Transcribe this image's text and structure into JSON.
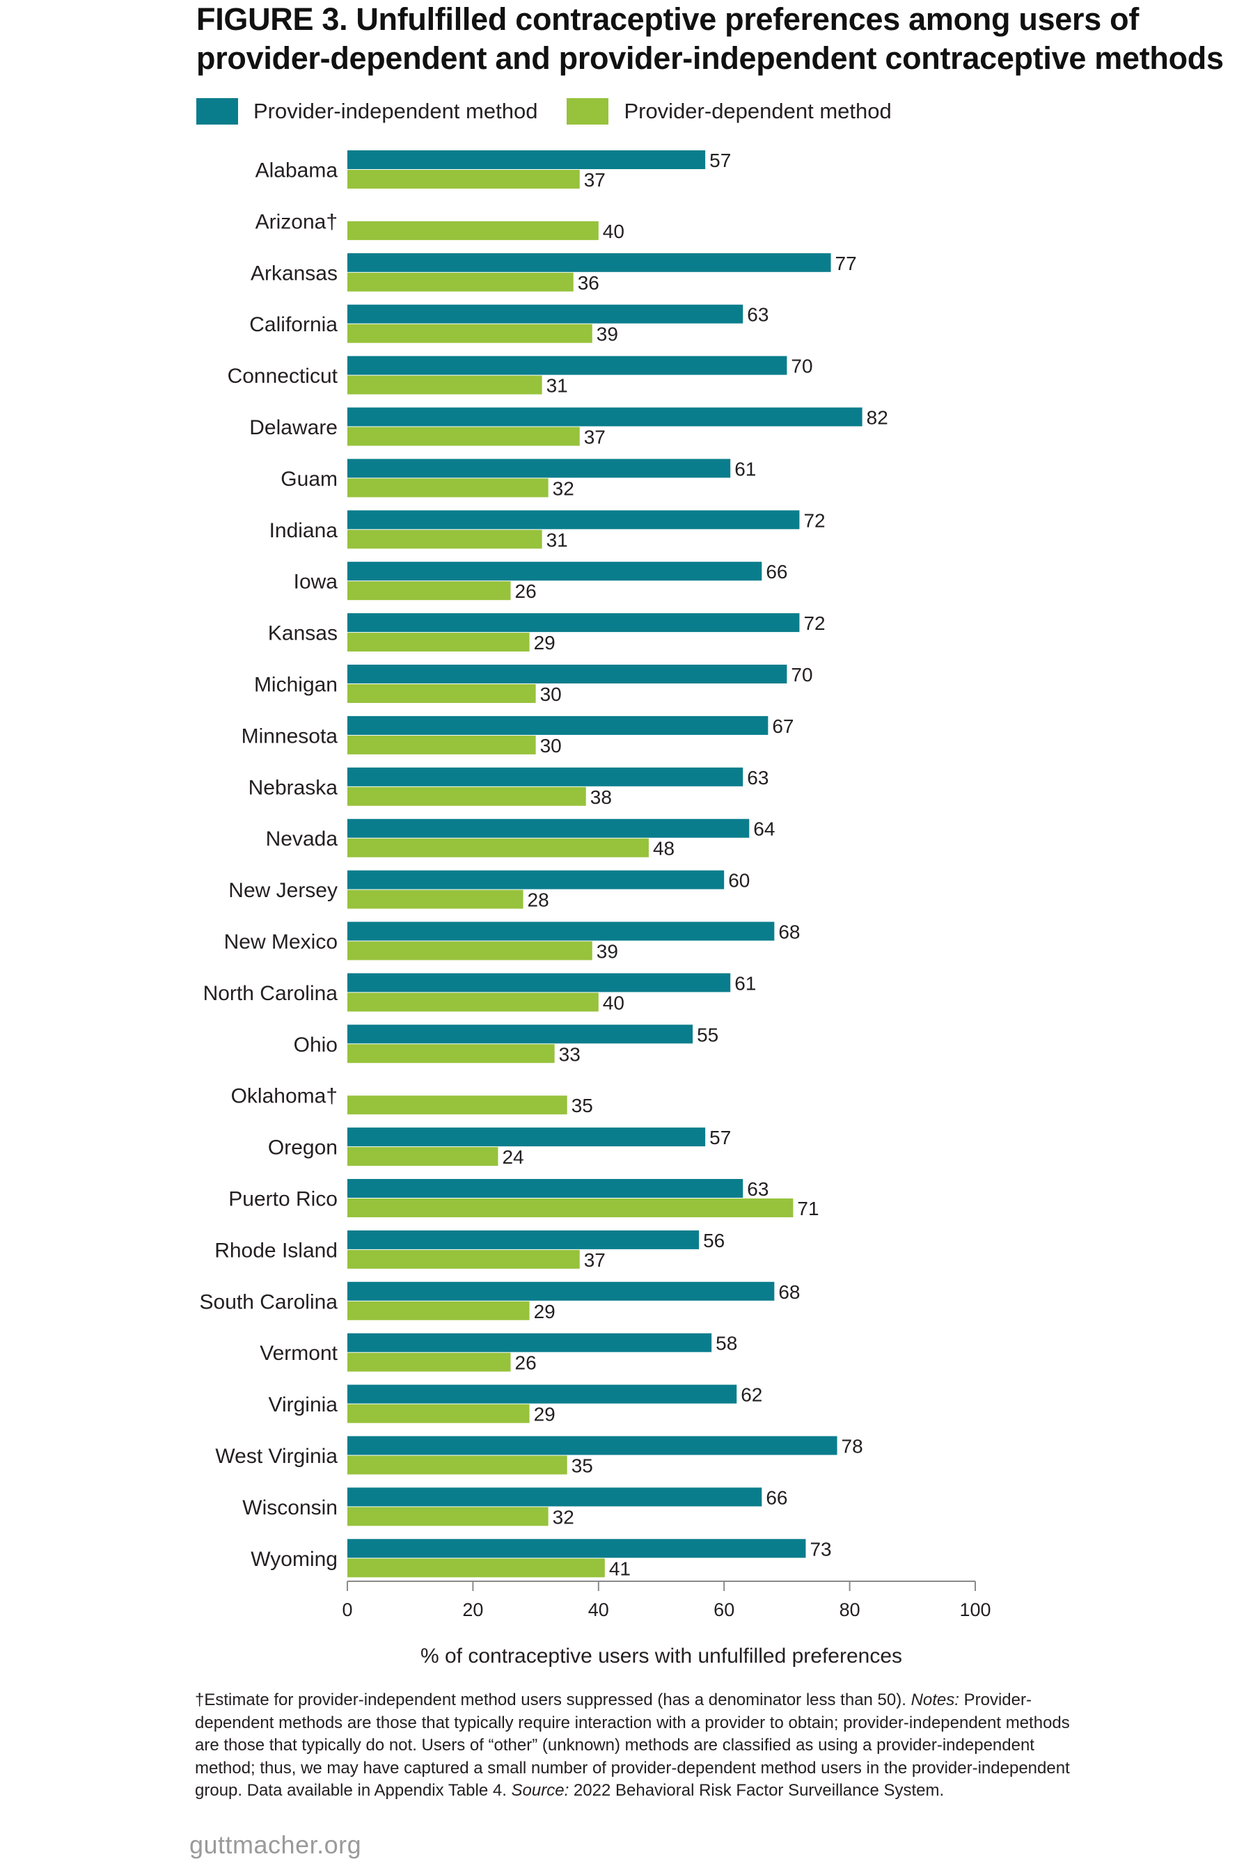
{
  "title": {
    "figure_label": "FIGURE 3.",
    "text": "Unfulfilled contraceptive preferences among users of provider-dependent and provider-independent contraceptive methods"
  },
  "legend": {
    "independent_label": "Provider-independent method",
    "dependent_label": "Provider-dependent method"
  },
  "colors": {
    "independent": "#0a7d8c",
    "dependent": "#97c23c",
    "axis": "#8a8a8a",
    "text": "#231f20"
  },
  "chart_data": {
    "type": "bar",
    "orientation": "horizontal",
    "categories": [
      "Alabama",
      "Arizona†",
      "Arkansas",
      "California",
      "Connecticut",
      "Delaware",
      "Guam",
      "Indiana",
      "Iowa",
      "Kansas",
      "Michigan",
      "Minnesota",
      "Nebraska",
      "Nevada",
      "New Jersey",
      "New Mexico",
      "North Carolina",
      "Ohio",
      "Oklahoma†",
      "Oregon",
      "Puerto Rico",
      "Rhode Island",
      "South Carolina",
      "Vermont",
      "Virginia",
      "West Virginia",
      "Wisconsin",
      "Wyoming"
    ],
    "series": [
      {
        "name": "Provider-independent method",
        "values": [
          57,
          null,
          77,
          63,
          70,
          82,
          61,
          72,
          66,
          72,
          70,
          67,
          63,
          64,
          60,
          68,
          61,
          55,
          null,
          57,
          63,
          56,
          68,
          58,
          62,
          78,
          66,
          73
        ]
      },
      {
        "name": "Provider-dependent method",
        "values": [
          37,
          40,
          36,
          39,
          31,
          37,
          32,
          31,
          26,
          29,
          30,
          30,
          38,
          48,
          28,
          39,
          40,
          33,
          35,
          24,
          71,
          37,
          29,
          26,
          29,
          35,
          32,
          41
        ]
      }
    ],
    "xlabel": "% of contraceptive users with unfulfilled preferences",
    "xlim": [
      0,
      100
    ],
    "xticks": [
      0,
      20,
      40,
      60,
      80,
      100
    ],
    "grid": false,
    "legend_position": "top-left"
  },
  "footnote": {
    "dagger_text": "†Estimate for provider-independent method users suppressed (has a denominator less than 50). ",
    "notes_label": "Notes:",
    "notes_text": " Provider-dependent methods are those that typically require interaction with a provider to obtain; provider-independent methods are those that typically do not. Users of “other” (unknown) methods are classified as using a provider-independent method; thus, we may have captured a small number of provider-dependent method users in the provider-independent group. Data available in Appendix Table 4. ",
    "source_label": "Source:",
    "source_text": " 2022 Behavioral Risk Factor Surveillance System."
  },
  "site": "guttmacher.org"
}
